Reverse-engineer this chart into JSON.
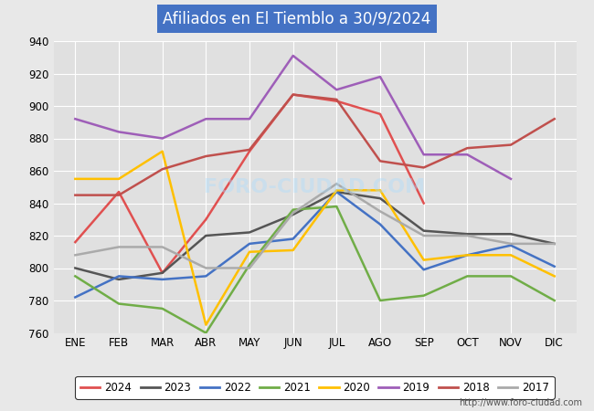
{
  "title": "Afiliados en El Tiemblo a 30/9/2024",
  "title_color": "#ffffff",
  "title_bg": "#4472c4",
  "ylim": [
    760,
    940
  ],
  "yticks": [
    760,
    780,
    800,
    820,
    840,
    860,
    880,
    900,
    920,
    940
  ],
  "months": [
    "ENE",
    "FEB",
    "MAR",
    "ABR",
    "MAY",
    "JUN",
    "JUL",
    "AGO",
    "SEP",
    "OCT",
    "NOV",
    "DIC"
  ],
  "series": {
    "2024": {
      "color": "#e05050",
      "data": [
        816,
        847,
        797,
        830,
        872,
        907,
        903,
        895,
        840,
        null,
        null,
        null
      ]
    },
    "2023": {
      "color": "#555555",
      "data": [
        800,
        793,
        797,
        820,
        822,
        833,
        847,
        843,
        823,
        821,
        821,
        815
      ]
    },
    "2022": {
      "color": "#4472c4",
      "data": [
        782,
        795,
        793,
        795,
        815,
        818,
        847,
        827,
        799,
        808,
        814,
        801
      ]
    },
    "2021": {
      "color": "#70ad47",
      "data": [
        795,
        778,
        775,
        760,
        802,
        836,
        838,
        780,
        783,
        795,
        795,
        780
      ]
    },
    "2020": {
      "color": "#ffc000",
      "data": [
        855,
        855,
        872,
        765,
        810,
        811,
        848,
        848,
        805,
        808,
        808,
        795
      ]
    },
    "2019": {
      "color": "#9e5eb8",
      "data": [
        892,
        884,
        880,
        892,
        892,
        931,
        910,
        918,
        870,
        870,
        855,
        null
      ]
    },
    "2018": {
      "color": "#c0504d",
      "data": [
        845,
        845,
        861,
        869,
        873,
        907,
        904,
        866,
        862,
        874,
        876,
        892
      ]
    },
    "2017": {
      "color": "#aaaaaa",
      "data": [
        808,
        813,
        813,
        800,
        800,
        834,
        852,
        835,
        820,
        820,
        815,
        815
      ]
    }
  },
  "legend_order": [
    "2024",
    "2023",
    "2022",
    "2021",
    "2020",
    "2019",
    "2018",
    "2017"
  ],
  "figure_bg": "#e8e8e8",
  "plot_bg": "#e0e0e0",
  "grid_color": "#ffffff",
  "footer_url": "http://www.foro-ciudad.com"
}
